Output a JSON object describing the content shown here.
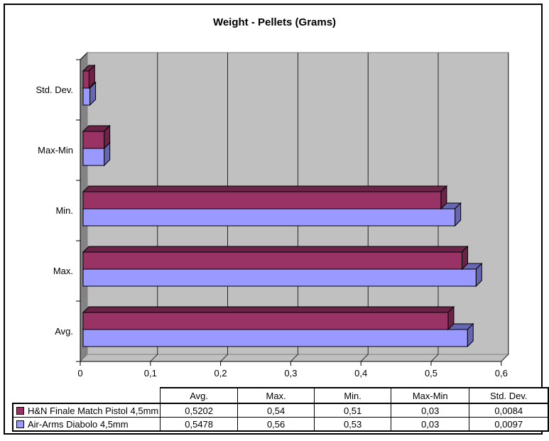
{
  "chart_data": {
    "type": "bar",
    "orientation": "horizontal",
    "style": "3d",
    "title": "Weight - Pellets (Grams)",
    "categories": [
      "Std. Dev.",
      "Max-Min",
      "Min.",
      "Max.",
      "Avg."
    ],
    "series": [
      {
        "name": "H&N Finale Match Pistol 4,5mm",
        "color": "#993366",
        "shade_color": "#6b2448",
        "values": [
          0.0084,
          0.03,
          0.51,
          0.54,
          0.5202
        ]
      },
      {
        "name": "Air-Arms Diabolo 4,5mm",
        "color": "#9999ff",
        "shade_color": "#6666b3",
        "values": [
          0.0097,
          0.03,
          0.53,
          0.56,
          0.5478
        ]
      }
    ],
    "xlim": [
      0,
      0.6
    ],
    "x_ticks": [
      "0",
      "0,1",
      "0,2",
      "0,3",
      "0,4",
      "0,5",
      "0,6"
    ],
    "grid": true,
    "legend_position": "bottom-table"
  },
  "colors": {
    "wall_back": "#c0c0c0",
    "wall_side": "#848284",
    "wall_edge": "#808080",
    "axis": "#000000",
    "frame_border": "#000000",
    "background": "#ffffff"
  },
  "table": {
    "headers": [
      "",
      "Avg.",
      "Max.",
      "Min.",
      "Max-Min",
      "Std. Dev."
    ],
    "rows": [
      {
        "name": "H&N Finale Match Pistol 4,5mm",
        "swatch_color": "#993366",
        "values": [
          "0,5202",
          "0,54",
          "0,51",
          "0,03",
          "0,0084"
        ]
      },
      {
        "name": "Air-Arms Diabolo 4,5mm",
        "swatch_color": "#9999ff",
        "values": [
          "0,5478",
          "0,56",
          "0,53",
          "0,03",
          "0,0097"
        ]
      }
    ]
  }
}
